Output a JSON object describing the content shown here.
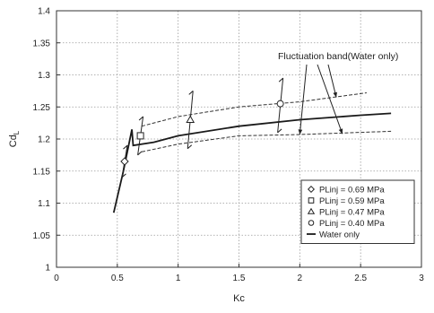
{
  "chart_data": {
    "type": "scatter",
    "xlabel": "Kc",
    "ylabel": "Cd",
    "ylabel_subscript": "L",
    "xlim": [
      0,
      3
    ],
    "ylim": [
      1,
      1.4
    ],
    "x_ticks": [
      "0",
      "0.5",
      "1",
      "1.5",
      "2",
      "2.5",
      "3"
    ],
    "y_ticks": [
      "1",
      "1.05",
      "1.1",
      "1.15",
      "1.2",
      "1.25",
      "1.3",
      "1.35",
      "1.4"
    ],
    "grid": true,
    "legend_position": "bottom-right",
    "annotation": "Fluctuation band(Water only)",
    "series": [
      {
        "name": "PLinj = 0.69 MPa",
        "marker": "diamond",
        "points": [
          {
            "x": 0.56,
            "y": 1.165
          }
        ],
        "error_bars": [
          {
            "x": 0.56,
            "y_low": 1.14,
            "y_high": 1.19
          }
        ]
      },
      {
        "name": "PLinj = 0.59 MPa",
        "marker": "square",
        "points": [
          {
            "x": 0.69,
            "y": 1.205
          }
        ],
        "error_bars": [
          {
            "x": 0.69,
            "y_low": 1.175,
            "y_high": 1.235
          }
        ]
      },
      {
        "name": "PLinj = 0.47 MPa",
        "marker": "triangle",
        "points": [
          {
            "x": 1.1,
            "y": 1.23
          }
        ],
        "error_bars": [
          {
            "x": 1.1,
            "y_low": 1.185,
            "y_high": 1.275
          }
        ]
      },
      {
        "name": "PLinj = 0.40 MPa",
        "marker": "circle",
        "points": [
          {
            "x": 1.84,
            "y": 1.255
          }
        ],
        "error_bars": [
          {
            "x": 1.84,
            "y_low": 1.21,
            "y_high": 1.295
          }
        ]
      },
      {
        "name": "Water only",
        "marker": "line",
        "points": [
          {
            "x": 0.47,
            "y": 1.085
          },
          {
            "x": 0.55,
            "y": 1.15
          },
          {
            "x": 0.62,
            "y": 1.215
          },
          {
            "x": 0.63,
            "y": 1.19
          },
          {
            "x": 0.8,
            "y": 1.195
          },
          {
            "x": 1.0,
            "y": 1.205
          },
          {
            "x": 1.5,
            "y": 1.22
          },
          {
            "x": 2.0,
            "y": 1.23
          },
          {
            "x": 2.5,
            "y": 1.237
          },
          {
            "x": 2.75,
            "y": 1.24
          }
        ]
      }
    ],
    "band_upper": [
      {
        "x": 0.7,
        "y": 1.22
      },
      {
        "x": 1.0,
        "y": 1.235
      },
      {
        "x": 1.5,
        "y": 1.25
      },
      {
        "x": 2.0,
        "y": 1.258
      },
      {
        "x": 2.55,
        "y": 1.272
      }
    ],
    "band_lower": [
      {
        "x": 0.7,
        "y": 1.18
      },
      {
        "x": 1.0,
        "y": 1.192
      },
      {
        "x": 1.5,
        "y": 1.205
      },
      {
        "x": 2.0,
        "y": 1.207
      },
      {
        "x": 2.75,
        "y": 1.212
      }
    ],
    "annotation_arrow_targets": [
      {
        "x": 2.0,
        "y": 1.207
      },
      {
        "x": 2.35,
        "y": 1.208
      },
      {
        "x": 2.3,
        "y": 1.265
      }
    ],
    "colors": {
      "line": "#1a1a1a",
      "band": "#333333",
      "grid": "#9a9a9a",
      "marker_fill": "#ffffff"
    }
  }
}
